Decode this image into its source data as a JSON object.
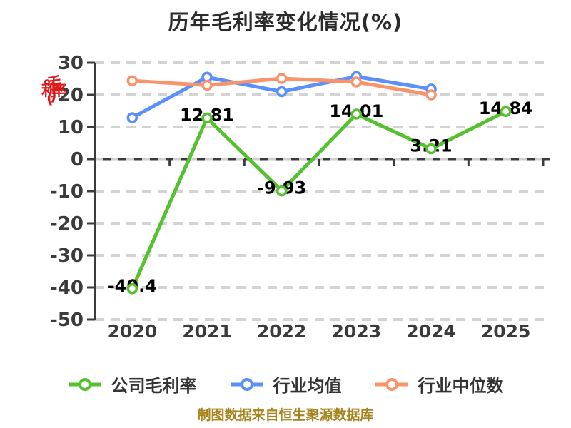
{
  "title": "历年毛利率变化情况(%)",
  "y_axis": {
    "label": "毛利率(%)",
    "label_color": "#e01a1a",
    "ticks": [
      30,
      20,
      10,
      0,
      -10,
      -20,
      -30,
      -40,
      -50
    ]
  },
  "x_axis": {
    "categories": [
      "2020",
      "2021",
      "2022",
      "2023",
      "2024",
      "2025"
    ]
  },
  "chart_data": {
    "type": "line",
    "title": "历年毛利率变化情况(%)",
    "categories": [
      "2020",
      "2021",
      "2022",
      "2023",
      "2024",
      "2025"
    ],
    "series": [
      {
        "name": "公司毛利率",
        "color": "#55c12e",
        "values": [
          -40.4,
          12.81,
          -9.93,
          14.01,
          3.21,
          14.84
        ],
        "labels": [
          "-40.4",
          "12.81",
          "-9.93",
          "14.01",
          "3.21",
          "14.84"
        ],
        "show_labels": true
      },
      {
        "name": "行业均值",
        "color": "#5b8ff9",
        "values": [
          12.9,
          25.5,
          21.0,
          25.7,
          21.8,
          null
        ],
        "show_labels": false
      },
      {
        "name": "行业中位数",
        "color": "#f8936a",
        "values": [
          24.4,
          23.0,
          25.1,
          24.0,
          20.0,
          null
        ],
        "show_labels": false
      }
    ],
    "ylim": [
      -50,
      30
    ],
    "grid": true,
    "grid_color": "#d3d3d3",
    "axis_color": "#3c3c3c",
    "tick_text_color": "#3b3b3b",
    "value_label_color": "#000000",
    "legend_position": "bottom"
  },
  "footer": {
    "text": "制图数据来自恒生聚源数据库",
    "color": "#a9831d"
  }
}
